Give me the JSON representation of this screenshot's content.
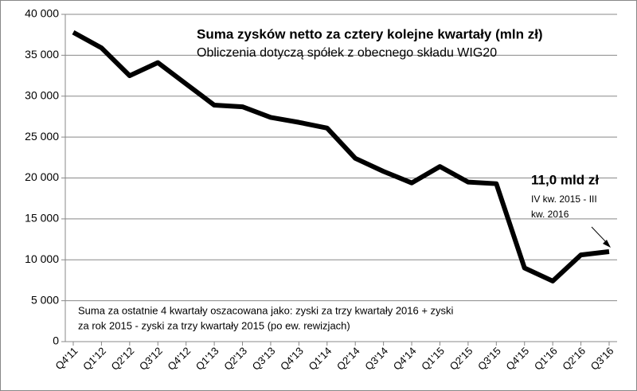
{
  "chart_data": {
    "type": "line",
    "title": "Suma zysków netto za cztery kolejne kwartały (mln zł)",
    "subtitle": "Obliczenia dotyczą spółek z obecnego składu WIG20",
    "annotation": {
      "value_text": "11,0 mld zł",
      "lines": [
        "IV kw. 2015 - III",
        "kw. 2016"
      ]
    },
    "note": [
      "Suma za ostatnie 4 kwartały oszacowana jako: zyski za trzy kwartały 2016 + zyski",
      "za rok 2015 - zyski za trzy kwartały 2015 (po ew. rewizjach)"
    ],
    "categories": [
      "Q4'11",
      "Q1'12",
      "Q2'12",
      "Q3'12",
      "Q4'12",
      "Q1'13",
      "Q2'13",
      "Q3'13",
      "Q4'13",
      "Q1'14",
      "Q2'14",
      "Q3'14",
      "Q4'14",
      "Q1'15",
      "Q2'15",
      "Q3'15",
      "Q4'15",
      "Q1'16",
      "Q2'16",
      "Q3'16"
    ],
    "values": [
      37800,
      35900,
      32500,
      34100,
      31500,
      28900,
      28700,
      27400,
      26800,
      26100,
      22400,
      20800,
      19400,
      21400,
      19500,
      19300,
      9000,
      7400,
      10600,
      11000
    ],
    "color": "#000000",
    "ylim": [
      0,
      40000
    ],
    "yticks": [
      0,
      {
        "value": 5000,
        "label": "5 000"
      },
      {
        "value": 10000,
        "label": "10 000"
      },
      {
        "value": 15000,
        "label": "15 000"
      },
      {
        "value": 20000,
        "label": "20 000"
      },
      {
        "value": 25000,
        "label": "25 000"
      },
      {
        "value": 30000,
        "label": "30 000"
      },
      {
        "value": 35000,
        "label": "35 000"
      },
      {
        "value": 40000,
        "label": "40 000"
      }
    ],
    "grid": true
  }
}
